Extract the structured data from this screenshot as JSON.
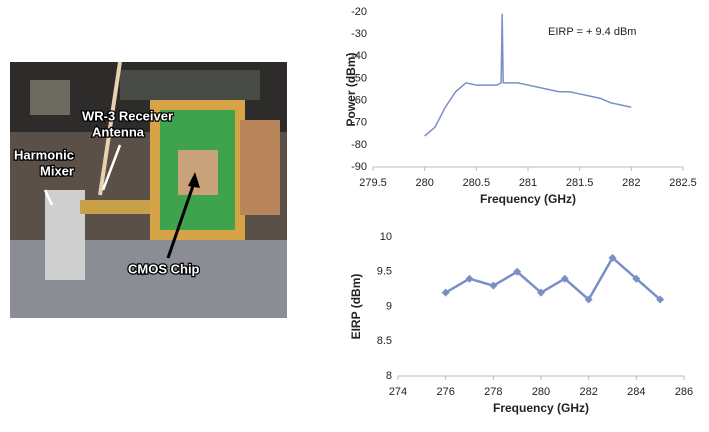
{
  "photo": {
    "labels": [
      "WR-3 Receiver",
      "Antenna",
      "Harmonic",
      "Mixer",
      "CMOS Chip"
    ]
  },
  "chart_data": [
    {
      "type": "line",
      "annotation": "EIRP = + 9.4 dBm",
      "xlabel": "Frequency (GHz)",
      "ylabel": "Power (dBm)",
      "x": [
        280,
        280.1,
        280.2,
        280.3,
        280.4,
        280.5,
        280.6,
        280.7,
        280.74,
        280.75,
        280.76,
        280.8,
        280.9,
        281,
        281.1,
        281.2,
        281.3,
        281.4,
        281.5,
        281.6,
        281.7,
        281.8,
        281.9,
        282
      ],
      "series": [
        {
          "color": "#7b8fc7",
          "values": [
            -76,
            -72,
            -63,
            -56,
            -52,
            -53,
            -53,
            -53,
            -52,
            -21,
            -52,
            -52,
            -52,
            -53,
            -54,
            -55,
            -56,
            -56,
            -57,
            -58,
            -59,
            -61,
            -62,
            -63
          ]
        }
      ],
      "xlim": [
        279.5,
        282.5
      ],
      "xticks": [
        279.5,
        280,
        280.5,
        281,
        281.5,
        282,
        282.5
      ],
      "ylim": [
        -90,
        -20
      ],
      "yticks": [
        -90,
        -80,
        -70,
        -60,
        -50,
        -40,
        -30,
        -20
      ]
    },
    {
      "type": "line",
      "xlabel": "Frequency (GHz)",
      "ylabel": "EIRP (dBm)",
      "marker": "diamond",
      "x": [
        276,
        277,
        278,
        279,
        280,
        281,
        282,
        283,
        284,
        285
      ],
      "series": [
        {
          "color": "#7b8fc7",
          "values": [
            9.2,
            9.4,
            9.3,
            9.5,
            9.2,
            9.4,
            9.1,
            9.7,
            9.4,
            9.1
          ]
        }
      ],
      "xlim": [
        274,
        286
      ],
      "xticks": [
        274,
        276,
        278,
        280,
        282,
        284,
        286
      ],
      "ylim": [
        8,
        10
      ],
      "yticks": [
        8,
        8.5,
        9,
        9.5,
        10
      ]
    }
  ]
}
